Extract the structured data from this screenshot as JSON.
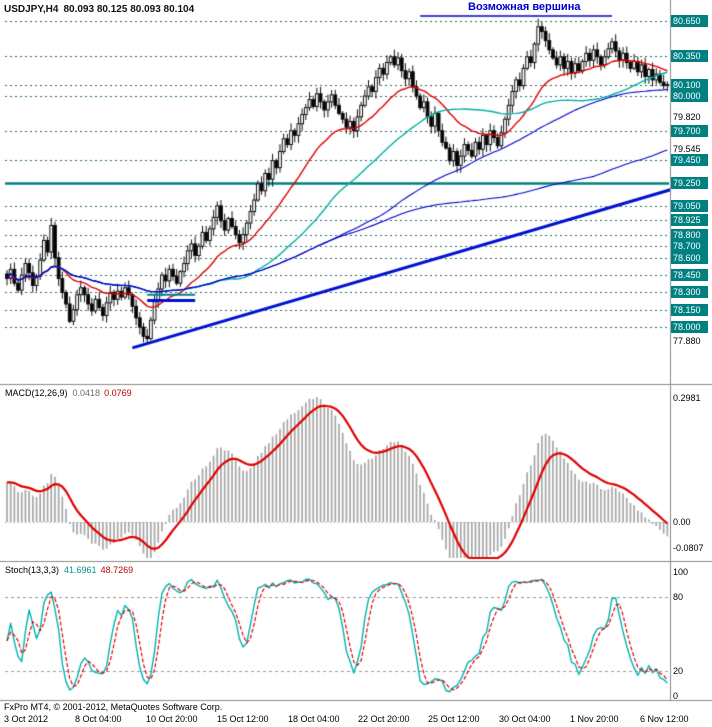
{
  "annotation": {
    "text": "Возможная вершина",
    "line": {
      "from_bar": 112,
      "to_bar": 164,
      "price": 80.693
    }
  },
  "footer": {
    "text": "FxPro MT4, © 2001-2012, MetaQuotes Software Corp."
  },
  "time_axis": {
    "labels": [
      "3 Oct 2012",
      "8 Oct 04:00",
      "10 Oct 20:00",
      "15 Oct 12:00",
      "18 Oct 04:00",
      "22 Oct 20:00",
      "25 Oct 12:00",
      "30 Oct 04:00",
      "1 Nov 20:00",
      "6 Nov 12:00"
    ]
  },
  "colors": {
    "background": "#ffffff",
    "grid_dashed": "#2f6f6f",
    "hline_solid": "#008080",
    "axis_box_bg": "#008080",
    "axis_box_text": "#ffffff",
    "bull": "#ffffff",
    "bear": "#000000",
    "candle_outline": "#111111",
    "ma_red": "#e00000",
    "ma_teal": "#00b0a0",
    "ma_blue": "#0000cc",
    "trend_blue": "#0010d0",
    "annotation": "#0000cc",
    "macd_hist": "#a6a6a6",
    "macd_signal": "#e00000",
    "stoch_main": "#00b2b2",
    "stoch_signal": "#e00000"
  },
  "chart_data": [
    {
      "type": "candlestick",
      "symbol": "USDJPY,H4",
      "ohlc_display": "80.093 80.125 80.093 80.104",
      "current": {
        "open": 80.093,
        "high": 80.125,
        "low": 80.093,
        "close": 80.104
      },
      "first_open": 78.46,
      "spike_high_bar": 144,
      "spike_high": 80.67,
      "spike_low_bar": 38,
      "spike_low": 77.88,
      "solid_level": 79.25,
      "closes": [
        78.42,
        78.5,
        78.38,
        78.32,
        78.45,
        78.55,
        78.47,
        78.36,
        78.44,
        78.58,
        78.75,
        78.65,
        78.88,
        78.6,
        78.42,
        78.3,
        78.2,
        78.05,
        78.15,
        78.28,
        78.34,
        78.28,
        78.2,
        78.14,
        78.24,
        78.17,
        78.1,
        78.21,
        78.3,
        78.24,
        78.31,
        78.26,
        78.34,
        78.28,
        78.18,
        78.08,
        78.0,
        77.92,
        77.9,
        78.06,
        78.22,
        78.33,
        78.45,
        78.4,
        78.5,
        78.44,
        78.38,
        78.48,
        78.55,
        78.66,
        78.72,
        78.62,
        78.7,
        78.82,
        78.75,
        78.85,
        78.95,
        79.05,
        78.92,
        78.84,
        78.94,
        78.87,
        78.8,
        78.73,
        78.8,
        78.9,
        79.0,
        79.1,
        79.24,
        79.18,
        79.33,
        79.28,
        79.44,
        79.38,
        79.52,
        79.63,
        79.58,
        79.7,
        79.66,
        79.76,
        79.84,
        79.9,
        79.97,
        79.91,
        80.02,
        79.95,
        79.88,
        79.95,
        80.01,
        79.92,
        79.85,
        79.8,
        79.73,
        79.78,
        79.7,
        79.82,
        79.92,
        80.0,
        80.08,
        80.04,
        80.16,
        80.24,
        80.19,
        80.29,
        80.34,
        80.27,
        80.33,
        80.22,
        80.15,
        80.21,
        80.08,
        80.0,
        79.9,
        79.95,
        79.82,
        79.74,
        79.85,
        79.7,
        79.6,
        79.55,
        79.44,
        79.52,
        79.4,
        79.48,
        79.58,
        79.53,
        79.48,
        79.6,
        79.54,
        79.66,
        79.58,
        79.7,
        79.64,
        79.57,
        79.68,
        79.8,
        79.92,
        80.04,
        80.14,
        80.09,
        80.24,
        80.34,
        80.29,
        80.45,
        80.6,
        80.56,
        80.48,
        80.4,
        80.33,
        80.27,
        80.34,
        80.24,
        80.3,
        80.2,
        80.28,
        80.22,
        80.3,
        80.37,
        80.31,
        80.4,
        80.34,
        80.27,
        80.34,
        80.41,
        80.47,
        80.39,
        80.31,
        80.37,
        80.29,
        80.24,
        80.3,
        80.21,
        80.27,
        80.17,
        80.23,
        80.14,
        80.19,
        80.12,
        80.09,
        80.1
      ],
      "price_scale": [
        {
          "label": "80.650",
          "price": 80.65,
          "boxed": true
        },
        {
          "label": "80.350",
          "price": 80.35,
          "boxed": true
        },
        {
          "label": "80.100",
          "price": 80.1,
          "boxed": true
        },
        {
          "label": "80.000",
          "price": 80.0,
          "boxed": true
        },
        {
          "label": "79.820",
          "price": 79.82,
          "boxed": false
        },
        {
          "label": "79.700",
          "price": 79.7,
          "boxed": true
        },
        {
          "label": "79.545",
          "price": 79.545,
          "boxed": false
        },
        {
          "label": "79.450",
          "price": 79.45,
          "boxed": true
        },
        {
          "label": "79.250",
          "price": 79.25,
          "boxed": true
        },
        {
          "label": "79.050",
          "price": 79.05,
          "boxed": true
        },
        {
          "label": "78.925",
          "price": 78.925,
          "boxed": true
        },
        {
          "label": "78.800",
          "price": 78.8,
          "boxed": true
        },
        {
          "label": "78.700",
          "price": 78.7,
          "boxed": true
        },
        {
          "label": "78.600",
          "price": 78.6,
          "boxed": true
        },
        {
          "label": "78.450",
          "price": 78.45,
          "boxed": true
        },
        {
          "label": "78.300",
          "price": 78.3,
          "boxed": true
        },
        {
          "label": "78.150",
          "price": 78.15,
          "boxed": true
        },
        {
          "label": "78.000",
          "price": 78.0,
          "boxed": true
        },
        {
          "label": "77.880",
          "price": 77.88,
          "boxed": false
        }
      ],
      "overlays": {
        "moving_averages": [
          {
            "method": "ema",
            "period": 21,
            "color": "#e00000",
            "width": 1.4
          },
          {
            "method": "sma",
            "period": 50,
            "color": "#00b0a0",
            "width": 1.4
          },
          {
            "method": "sma",
            "period": 89,
            "color": "#0000cc",
            "width": 1.1
          },
          {
            "method": "sma",
            "period": 160,
            "color": "#0000cc",
            "width": 1.1
          }
        ],
        "segments": [
          {
            "from_bar": 38,
            "to_bar": 51,
            "price": 78.28,
            "color": "#008080",
            "width": 2
          },
          {
            "from_bar": 38,
            "to_bar": 51,
            "price": 78.23,
            "color": "#0010d0",
            "width": 3
          }
        ],
        "trendline": {
          "from_bar": 34,
          "from_price": 77.82,
          "to_bar": 181,
          "to_price": 79.2,
          "color": "#0010d0",
          "width": 3
        }
      }
    },
    {
      "type": "bar",
      "name": "MACD",
      "label": "MACD(12,26,9)",
      "params": [
        12,
        26,
        9
      ],
      "value_main": "0.0418",
      "value_signal": "0.0769",
      "axis_labels": [
        "0.2981",
        "0.00",
        "-0.0807"
      ],
      "axis_values": [
        0.2981,
        0.0,
        -0.0807
      ],
      "derivation": "histogram = EMA12(close) - EMA26(close); signal = EMA9(histogram)"
    },
    {
      "type": "line",
      "name": "Stochastic",
      "label": "Stoch(13,3,3)",
      "params": [
        13,
        3,
        3
      ],
      "value_main": "41.6961",
      "value_signal": "48.7269",
      "axis_labels": [
        "100",
        "80",
        "20",
        "0"
      ],
      "axis_values": [
        100,
        80,
        20,
        0
      ],
      "levels": [
        80,
        20
      ],
      "derivation": "%K = SMA3(raw stochastic 13); %D = SMA3(%K)"
    }
  ]
}
